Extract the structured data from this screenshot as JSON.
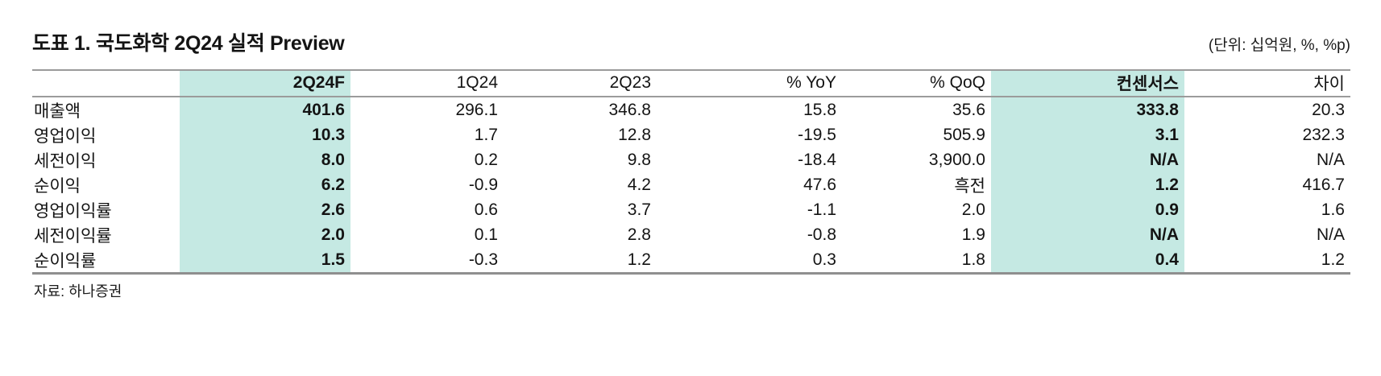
{
  "header": {
    "title": "도표 1. 국도화학 2Q24 실적 Preview",
    "unit_note": "(단위: 십억원, %, %p)"
  },
  "table": {
    "columns": [
      {
        "label": "",
        "highlight": false
      },
      {
        "label": "2Q24F",
        "highlight": true
      },
      {
        "label": "1Q24",
        "highlight": false
      },
      {
        "label": "2Q23",
        "highlight": false
      },
      {
        "label": "% YoY",
        "highlight": false
      },
      {
        "label": "% QoQ",
        "highlight": false
      },
      {
        "label": "컨센서스",
        "highlight": true
      },
      {
        "label": "차이",
        "highlight": false
      }
    ],
    "rows": [
      {
        "label": "매출액",
        "values": [
          "401.6",
          "296.1",
          "346.8",
          "15.8",
          "35.6",
          "333.8",
          "20.3"
        ]
      },
      {
        "label": "영업이익",
        "values": [
          "10.3",
          "1.7",
          "12.8",
          "-19.5",
          "505.9",
          "3.1",
          "232.3"
        ]
      },
      {
        "label": "세전이익",
        "values": [
          "8.0",
          "0.2",
          "9.8",
          "-18.4",
          "3,900.0",
          "N/A",
          "N/A"
        ]
      },
      {
        "label": "순이익",
        "values": [
          "6.2",
          "-0.9",
          "4.2",
          "47.6",
          "흑전",
          "1.2",
          "416.7"
        ]
      },
      {
        "label": "영업이익률",
        "values": [
          "2.6",
          "0.6",
          "3.7",
          "-1.1",
          "2.0",
          "0.9",
          "1.6"
        ]
      },
      {
        "label": "세전이익률",
        "values": [
          "2.0",
          "0.1",
          "2.8",
          "-0.8",
          "1.9",
          "N/A",
          "N/A"
        ]
      },
      {
        "label": "순이익률",
        "values": [
          "1.5",
          "-0.3",
          "1.2",
          "0.3",
          "1.8",
          "0.4",
          "1.2"
        ]
      }
    ]
  },
  "footer": {
    "source": "자료: 하나증권"
  },
  "colors": {
    "highlight": "#c5e9e3",
    "border": "#9b9b9b",
    "text": "#141414"
  },
  "chart_data": {
    "type": "table",
    "title": "도표 1. 국도화학 2Q24 실적 Preview",
    "unit": "(단위: 십억원, %, %p)",
    "columns": [
      "",
      "2Q24F",
      "1Q24",
      "2Q23",
      "% YoY",
      "% QoQ",
      "컨센서스",
      "차이"
    ],
    "rows": [
      [
        "매출액",
        "401.6",
        "296.1",
        "346.8",
        "15.8",
        "35.6",
        "333.8",
        "20.3"
      ],
      [
        "영업이익",
        "10.3",
        "1.7",
        "12.8",
        "-19.5",
        "505.9",
        "3.1",
        "232.3"
      ],
      [
        "세전이익",
        "8.0",
        "0.2",
        "9.8",
        "-18.4",
        "3,900.0",
        "N/A",
        "N/A"
      ],
      [
        "순이익",
        "6.2",
        "-0.9",
        "4.2",
        "47.6",
        "흑전",
        "1.2",
        "416.7"
      ],
      [
        "영업이익률",
        "2.6",
        "0.6",
        "3.7",
        "-1.1",
        "2.0",
        "0.9",
        "1.6"
      ],
      [
        "세전이익률",
        "2.0",
        "0.1",
        "2.8",
        "-0.8",
        "1.9",
        "N/A",
        "N/A"
      ],
      [
        "순이익률",
        "1.5",
        "-0.3",
        "1.2",
        "0.3",
        "1.8",
        "0.4",
        "1.2"
      ]
    ],
    "highlighted_columns": [
      "2Q24F",
      "컨센서스"
    ],
    "source": "자료: 하나증권"
  }
}
